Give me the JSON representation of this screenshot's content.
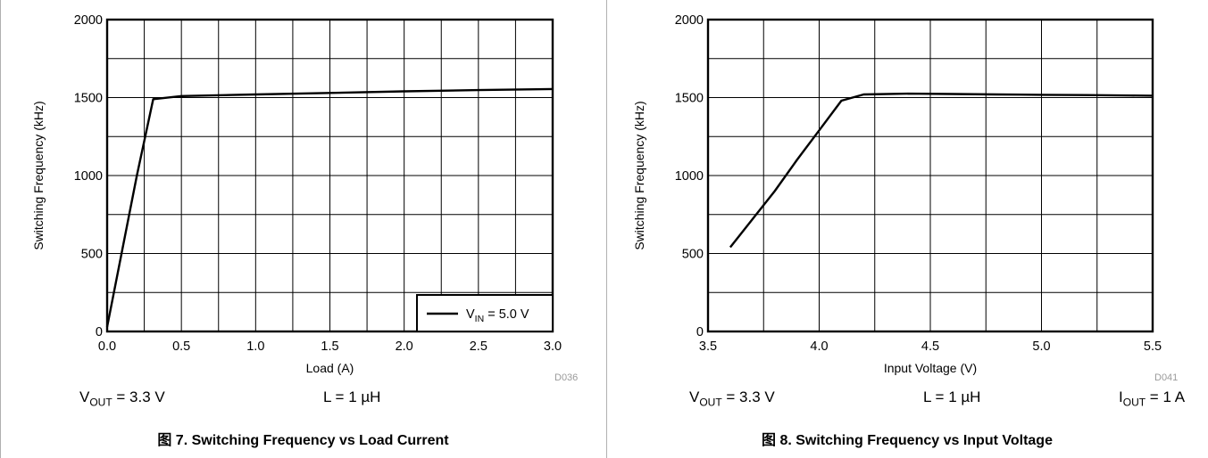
{
  "figures": [
    {
      "caption": "图 7. Switching Frequency vs Load Current",
      "code": "D036",
      "conditions": [
        {
          "main": "V",
          "sub": "OUT",
          "rest": " = 3.3 V"
        },
        {
          "main": "L = 1 µH",
          "sub": "",
          "rest": ""
        }
      ]
    },
    {
      "caption": "图 8. Switching Frequency vs Input Voltage",
      "code": "D041",
      "conditions": [
        {
          "main": "V",
          "sub": "OUT",
          "rest": " = 3.3 V"
        },
        {
          "main": "L = 1 µH",
          "sub": "",
          "rest": ""
        },
        {
          "main": "I",
          "sub": "OUT",
          "rest": " = 1 A"
        }
      ]
    }
  ],
  "chart_data": [
    {
      "type": "line",
      "title": "",
      "xlabel": "Load (A)",
      "ylabel": "Switching Frequency (kHz)",
      "xlim": [
        0,
        3.0
      ],
      "ylim": [
        0,
        2000
      ],
      "xticks": [
        "0.0",
        "0.5",
        "1.0",
        "1.5",
        "2.0",
        "2.5",
        "3.0"
      ],
      "yticks": [
        "0",
        "500",
        "1000",
        "1500",
        "2000"
      ],
      "grid": true,
      "legend": "bottom-right",
      "series": [
        {
          "legend_main": "V",
          "legend_sub": "IN",
          "legend_rest": " = 5.0 V",
          "color": "#000000",
          "x": [
            0.0,
            0.2,
            0.31,
            0.5,
            1.0,
            1.5,
            2.0,
            2.5,
            3.0
          ],
          "y": [
            30,
            1000,
            1490,
            1510,
            1520,
            1530,
            1540,
            1548,
            1555
          ]
        }
      ]
    },
    {
      "type": "line",
      "title": "",
      "xlabel": "Input Voltage (V)",
      "ylabel": "Switching Frequency (kHz)",
      "xlim": [
        3.5,
        5.5
      ],
      "ylim": [
        0,
        2000
      ],
      "xticks": [
        "3.5",
        "4.0",
        "4.5",
        "5.0",
        "5.5"
      ],
      "yticks": [
        "0",
        "500",
        "1000",
        "1500",
        "2000"
      ],
      "grid": true,
      "legend": "none",
      "series": [
        {
          "color": "#000000",
          "x": [
            3.6,
            3.7,
            3.8,
            3.9,
            4.0,
            4.1,
            4.2,
            4.4,
            4.6,
            4.8,
            5.0,
            5.2,
            5.4,
            5.5
          ],
          "y": [
            540,
            720,
            900,
            1100,
            1290,
            1480,
            1520,
            1525,
            1523,
            1520,
            1518,
            1516,
            1513,
            1512
          ]
        }
      ]
    }
  ]
}
